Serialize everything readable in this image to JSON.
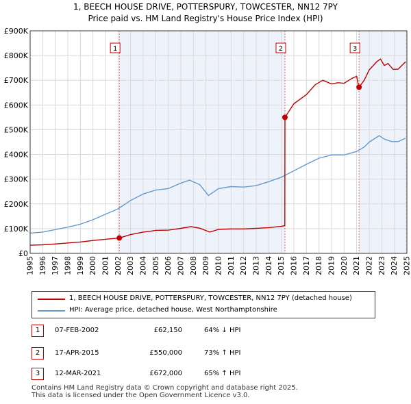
{
  "header": {
    "title_line1": "1, BEECH HOUSE DRIVE, POTTERSPURY, TOWCESTER, NN12 7PY",
    "title_line2": "Price paid vs. HM Land Registry's House Price Index (HPI)"
  },
  "chart_data": {
    "type": "line",
    "xlim": [
      1995,
      2025
    ],
    "ylim": [
      0,
      900000
    ],
    "y_ticks": [
      {
        "value": 0,
        "label": "£0"
      },
      {
        "value": 100000,
        "label": "£100K"
      },
      {
        "value": 200000,
        "label": "£200K"
      },
      {
        "value": 300000,
        "label": "£300K"
      },
      {
        "value": 400000,
        "label": "£400K"
      },
      {
        "value": 500000,
        "label": "£500K"
      },
      {
        "value": 600000,
        "label": "£600K"
      },
      {
        "value": 700000,
        "label": "£700K"
      },
      {
        "value": 800000,
        "label": "£800K"
      },
      {
        "value": 900000,
        "label": "£900K"
      }
    ],
    "x_ticks": [
      "1995",
      "1996",
      "1997",
      "1998",
      "1999",
      "2000",
      "2001",
      "2002",
      "2003",
      "2004",
      "2005",
      "2006",
      "2007",
      "2008",
      "2009",
      "2010",
      "2011",
      "2012",
      "2013",
      "2014",
      "2015",
      "2016",
      "2017",
      "2018",
      "2019",
      "2020",
      "2021",
      "2022",
      "2023",
      "2024",
      "2025"
    ],
    "grid": true,
    "shaded_periods": [
      [
        2002.1,
        2015.29
      ],
      [
        2021.19,
        2025
      ]
    ],
    "hatched_region": [
      2024.9,
      2025
    ],
    "series": [
      {
        "name": "1, BEECH HOUSE DRIVE, POTTERSPURY, TOWCESTER, NN12 7PY (detached house)",
        "color": "#c00000",
        "points": [
          [
            1995,
            33000
          ],
          [
            1996,
            34500
          ],
          [
            1997,
            38000
          ],
          [
            1998,
            42000
          ],
          [
            1999,
            46000
          ],
          [
            2000,
            52000
          ],
          [
            2001,
            57000
          ],
          [
            2002.1,
            62150
          ],
          [
            2003,
            76000
          ],
          [
            2004,
            86000
          ],
          [
            2004.5,
            89000
          ],
          [
            2005,
            93000
          ],
          [
            2006,
            94000
          ],
          [
            2007,
            101000
          ],
          [
            2007.8,
            108000
          ],
          [
            2008.5,
            102000
          ],
          [
            2009.3,
            86000
          ],
          [
            2010,
            97000
          ],
          [
            2011,
            99000
          ],
          [
            2012,
            99000
          ],
          [
            2013,
            101000
          ],
          [
            2014,
            104000
          ],
          [
            2015.0,
            109000
          ],
          [
            2015.28,
            112000
          ],
          [
            2015.29,
            550000
          ],
          [
            2016,
            605000
          ],
          [
            2017,
            642000
          ],
          [
            2017.7,
            682000
          ],
          [
            2018.3,
            700000
          ],
          [
            2019,
            685000
          ],
          [
            2019.5,
            690000
          ],
          [
            2020,
            688000
          ],
          [
            2020.6,
            707000
          ],
          [
            2021.0,
            716000
          ],
          [
            2021.1,
            690000
          ],
          [
            2021.19,
            672000
          ],
          [
            2021.6,
            700000
          ],
          [
            2022,
            742000
          ],
          [
            2022.6,
            775000
          ],
          [
            2022.9,
            786000
          ],
          [
            2023.2,
            760000
          ],
          [
            2023.5,
            768000
          ],
          [
            2023.9,
            744000
          ],
          [
            2024.3,
            745000
          ],
          [
            2024.9,
            775000
          ]
        ]
      },
      {
        "name": "HPI: Average price, detached house, West Northamptonshire",
        "color": "#6699cc",
        "points": [
          [
            1995,
            82000
          ],
          [
            1996,
            86000
          ],
          [
            1997,
            96000
          ],
          [
            1998,
            106000
          ],
          [
            1999,
            118000
          ],
          [
            2000,
            136000
          ],
          [
            2001,
            158000
          ],
          [
            2002,
            180000
          ],
          [
            2003,
            214000
          ],
          [
            2004,
            240000
          ],
          [
            2005,
            256000
          ],
          [
            2006,
            262000
          ],
          [
            2007,
            284000
          ],
          [
            2007.7,
            296000
          ],
          [
            2008.5,
            278000
          ],
          [
            2009.2,
            234000
          ],
          [
            2010,
            262000
          ],
          [
            2011,
            270000
          ],
          [
            2012,
            268000
          ],
          [
            2013,
            274000
          ],
          [
            2014,
            290000
          ],
          [
            2015,
            308000
          ],
          [
            2016,
            334000
          ],
          [
            2017,
            360000
          ],
          [
            2018,
            385000
          ],
          [
            2019,
            398000
          ],
          [
            2020,
            398000
          ],
          [
            2021,
            412000
          ],
          [
            2021.6,
            430000
          ],
          [
            2022,
            450000
          ],
          [
            2022.8,
            476000
          ],
          [
            2023.2,
            462000
          ],
          [
            2023.8,
            452000
          ],
          [
            2024.3,
            452000
          ],
          [
            2024.9,
            466000
          ]
        ]
      }
    ],
    "sales": [
      {
        "label": "1",
        "x": 2002.1,
        "y": 62150
      },
      {
        "label": "2",
        "x": 2015.29,
        "y": 550000
      },
      {
        "label": "3",
        "x": 2021.19,
        "y": 672000
      }
    ]
  },
  "legend": {
    "items": [
      {
        "label": "1, BEECH HOUSE DRIVE, POTTERSPURY, TOWCESTER, NN12 7PY (detached house)",
        "color": "#c00000"
      },
      {
        "label": "HPI: Average price, detached house, West Northamptonshire",
        "color": "#6699cc"
      }
    ]
  },
  "transactions": [
    {
      "num": "1",
      "date": "07-FEB-2002",
      "price": "£62,150",
      "hpi": "64% ↓ HPI"
    },
    {
      "num": "2",
      "date": "17-APR-2015",
      "price": "£550,000",
      "hpi": "73% ↑ HPI"
    },
    {
      "num": "3",
      "date": "12-MAR-2021",
      "price": "£672,000",
      "hpi": "65% ↑ HPI"
    }
  ],
  "footer": {
    "line1": "Contains HM Land Registry data © Crown copyright and database right 2025.",
    "line2": "This data is licensed under the Open Government Licence v3.0."
  }
}
